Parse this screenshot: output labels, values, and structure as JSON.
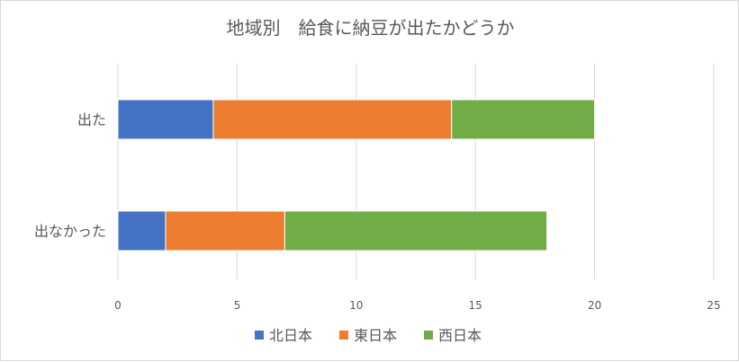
{
  "chart_data": {
    "type": "bar",
    "orientation": "horizontal",
    "stacked": true,
    "title": "地域別　給食に納豆が出たかどうか",
    "categories": [
      "出た",
      "出なかった"
    ],
    "series": [
      {
        "name": "北日本",
        "values": [
          4,
          2
        ],
        "color": "#4472c4"
      },
      {
        "name": "東日本",
        "values": [
          10,
          5
        ],
        "color": "#ed7d31"
      },
      {
        "name": "西日本",
        "values": [
          6,
          11
        ],
        "color": "#70ad47"
      }
    ],
    "xlim": [
      0,
      25
    ],
    "xticks": [
      "0",
      "5",
      "10",
      "15",
      "20",
      "25"
    ],
    "grid": true,
    "legend_position": "bottom"
  }
}
